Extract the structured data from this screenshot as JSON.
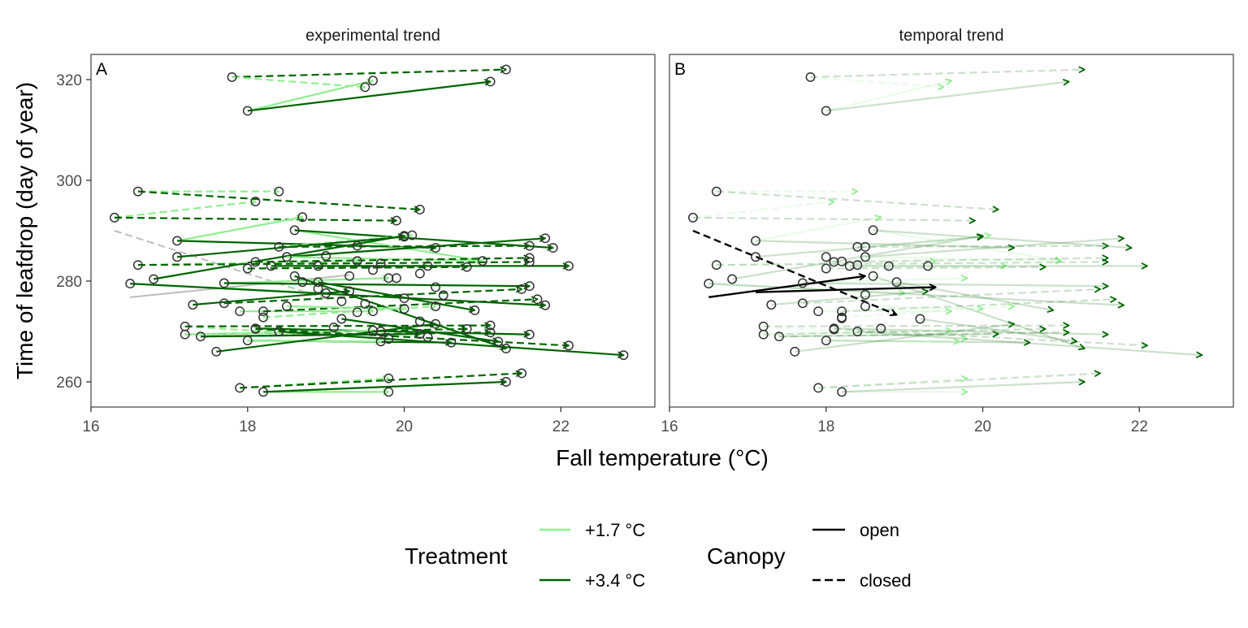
{
  "chart_data": {
    "type": "line",
    "ylabel": "Time of leafdrop (day of year)",
    "xlabel": "Fall temperature (°C)",
    "xlim": [
      16,
      23.2
    ],
    "ylim": [
      255,
      325
    ],
    "x_ticks": [
      16,
      18,
      20,
      22
    ],
    "y_ticks": [
      260,
      280,
      300,
      320
    ],
    "grid": false,
    "legend_position": "bottom",
    "legend": {
      "treatment_title": "Treatment",
      "treatment_items": [
        {
          "label": "+1.7 °C",
          "color": "#90EE90"
        },
        {
          "label": "+3.4 °C",
          "color": "#006400"
        }
      ],
      "canopy_title": "Canopy",
      "canopy_items": [
        {
          "label": "open",
          "dash": "solid"
        },
        {
          "label": "closed",
          "dash": "dashed"
        }
      ]
    },
    "colors": {
      "light": "#90EE90",
      "dark": "#006400",
      "summary": "#000000",
      "grey": "#bdbdbd",
      "point_edge": "#333333"
    },
    "panels": [
      {
        "tag": "A",
        "title": "experimental trend",
        "show_endpoints": true,
        "arrow_alpha": 1.0
      },
      {
        "tag": "B",
        "title": "temporal trend",
        "show_endpoints": false,
        "arrow_alpha": 0.2
      }
    ],
    "arrows": [
      {
        "x0": 17.8,
        "y0": 320.5,
        "x1": 21.3,
        "y1": 322.0,
        "treatment": "+3.4 °C",
        "canopy": "closed"
      },
      {
        "x0": 17.8,
        "y0": 320.5,
        "x1": 19.5,
        "y1": 318.5,
        "treatment": "+1.7 °C",
        "canopy": "closed"
      },
      {
        "x0": 18.0,
        "y0": 313.8,
        "x1": 19.6,
        "y1": 319.8,
        "treatment": "+1.7 °C",
        "canopy": "open"
      },
      {
        "x0": 18.0,
        "y0": 313.8,
        "x1": 21.1,
        "y1": 319.6,
        "treatment": "+3.4 °C",
        "canopy": "open"
      },
      {
        "x0": 16.6,
        "y0": 297.8,
        "x1": 18.4,
        "y1": 297.8,
        "treatment": "+1.7 °C",
        "canopy": "closed"
      },
      {
        "x0": 16.6,
        "y0": 297.8,
        "x1": 20.2,
        "y1": 294.2,
        "treatment": "+3.4 °C",
        "canopy": "closed"
      },
      {
        "x0": 16.3,
        "y0": 292.6,
        "x1": 18.1,
        "y1": 295.8,
        "treatment": "+1.7 °C",
        "canopy": "closed"
      },
      {
        "x0": 16.3,
        "y0": 292.6,
        "x1": 19.9,
        "y1": 292.0,
        "treatment": "+3.4 °C",
        "canopy": "closed"
      },
      {
        "x0": 17.1,
        "y0": 288.0,
        "x1": 18.7,
        "y1": 292.7,
        "treatment": "+1.7 °C",
        "canopy": "open"
      },
      {
        "x0": 17.1,
        "y0": 288.0,
        "x1": 20.4,
        "y1": 286.6,
        "treatment": "+3.4 °C",
        "canopy": "open"
      },
      {
        "x0": 18.6,
        "y0": 290.1,
        "x1": 21.0,
        "y1": 284.0,
        "treatment": "+1.7 °C",
        "canopy": "open"
      },
      {
        "x0": 18.6,
        "y0": 290.1,
        "x1": 21.9,
        "y1": 286.6,
        "treatment": "+3.4 °C",
        "canopy": "open"
      },
      {
        "x0": 18.4,
        "y0": 286.8,
        "x1": 20.1,
        "y1": 289.1,
        "treatment": "+1.7 °C",
        "canopy": "closed"
      },
      {
        "x0": 18.4,
        "y0": 286.8,
        "x1": 21.6,
        "y1": 287.0,
        "treatment": "+3.4 °C",
        "canopy": "closed"
      },
      {
        "x0": 17.1,
        "y0": 284.8,
        "x1": 20.0,
        "y1": 288.8,
        "treatment": "+3.4 °C",
        "canopy": "open"
      },
      {
        "x0": 16.8,
        "y0": 280.4,
        "x1": 20.0,
        "y1": 289.0,
        "treatment": "+3.4 °C",
        "canopy": "open"
      },
      {
        "x0": 18.5,
        "y0": 284.8,
        "x1": 21.8,
        "y1": 288.5,
        "treatment": "+3.4 °C",
        "canopy": "open"
      },
      {
        "x0": 18.5,
        "y0": 284.8,
        "x1": 21.0,
        "y1": 284.0,
        "treatment": "+1.7 °C",
        "canopy": "open"
      },
      {
        "x0": 16.6,
        "y0": 283.2,
        "x1": 19.4,
        "y1": 284.0,
        "treatment": "+1.7 °C",
        "canopy": "closed"
      },
      {
        "x0": 16.6,
        "y0": 283.2,
        "x1": 21.6,
        "y1": 283.8,
        "treatment": "+3.4 °C",
        "canopy": "closed"
      },
      {
        "x0": 18.1,
        "y0": 283.8,
        "x1": 21.6,
        "y1": 284.6,
        "treatment": "+3.4 °C",
        "canopy": "closed"
      },
      {
        "x0": 18.3,
        "y0": 283.0,
        "x1": 20.3,
        "y1": 283.0,
        "treatment": "+1.7 °C",
        "canopy": "open"
      },
      {
        "x0": 18.3,
        "y0": 283.0,
        "x1": 22.1,
        "y1": 283.0,
        "treatment": "+3.4 °C",
        "canopy": "open"
      },
      {
        "x0": 18.0,
        "y0": 282.5,
        "x1": 20.8,
        "y1": 282.8,
        "treatment": "+3.4 °C",
        "canopy": "closed"
      },
      {
        "x0": 16.5,
        "y0": 279.5,
        "x1": 19.0,
        "y1": 277.6,
        "treatment": "+1.7 °C",
        "canopy": "open"
      },
      {
        "x0": 16.5,
        "y0": 279.5,
        "x1": 21.8,
        "y1": 275.2,
        "treatment": "+3.4 °C",
        "canopy": "open"
      },
      {
        "x0": 17.7,
        "y0": 279.6,
        "x1": 19.8,
        "y1": 280.6,
        "treatment": "+1.7 °C",
        "canopy": "open"
      },
      {
        "x0": 17.7,
        "y0": 279.6,
        "x1": 21.6,
        "y1": 279.0,
        "treatment": "+3.4 °C",
        "canopy": "open"
      },
      {
        "x0": 18.9,
        "y0": 279.8,
        "x1": 20.9,
        "y1": 274.2,
        "treatment": "+3.4 °C",
        "canopy": "open"
      },
      {
        "x0": 18.6,
        "y0": 281.0,
        "x1": 21.3,
        "y1": 266.6,
        "treatment": "+3.4 °C",
        "canopy": "open"
      },
      {
        "x0": 17.3,
        "y0": 275.3,
        "x1": 19.3,
        "y1": 278.0,
        "treatment": "+3.4 °C",
        "canopy": "open"
      },
      {
        "x0": 17.7,
        "y0": 275.6,
        "x1": 21.5,
        "y1": 278.4,
        "treatment": "+3.4 °C",
        "canopy": "closed"
      },
      {
        "x0": 17.9,
        "y0": 274.0,
        "x1": 19.6,
        "y1": 274.0,
        "treatment": "+1.7 °C",
        "canopy": "open"
      },
      {
        "x0": 18.2,
        "y0": 274.0,
        "x1": 21.7,
        "y1": 276.4,
        "treatment": "+3.4 °C",
        "canopy": "closed"
      },
      {
        "x0": 18.2,
        "y0": 272.8,
        "x1": 20.4,
        "y1": 275.0,
        "treatment": "+1.7 °C",
        "canopy": "closed"
      },
      {
        "x0": 18.5,
        "y0": 275.0,
        "x1": 20.0,
        "y1": 274.5,
        "treatment": "+1.7 °C",
        "canopy": "open"
      },
      {
        "x0": 19.2,
        "y0": 272.5,
        "x1": 21.2,
        "y1": 268.0,
        "treatment": "+3.4 °C",
        "canopy": "open"
      },
      {
        "x0": 17.2,
        "y0": 271.0,
        "x1": 19.8,
        "y1": 268.5,
        "treatment": "+1.7 °C",
        "canopy": "closed"
      },
      {
        "x0": 17.2,
        "y0": 271.0,
        "x1": 21.1,
        "y1": 271.2,
        "treatment": "+3.4 °C",
        "canopy": "closed"
      },
      {
        "x0": 18.1,
        "y0": 270.6,
        "x1": 21.6,
        "y1": 269.4,
        "treatment": "+3.4 °C",
        "canopy": "open"
      },
      {
        "x0": 17.2,
        "y0": 269.4,
        "x1": 20.8,
        "y1": 270.5,
        "treatment": "+3.4 °C",
        "canopy": "closed"
      },
      {
        "x0": 17.2,
        "y0": 269.4,
        "x1": 19.6,
        "y1": 270.2,
        "treatment": "+1.7 °C",
        "canopy": "open"
      },
      {
        "x0": 17.4,
        "y0": 269.0,
        "x1": 20.2,
        "y1": 269.5,
        "treatment": "+3.4 °C",
        "canopy": "open"
      },
      {
        "x0": 17.4,
        "y0": 269.0,
        "x1": 21.1,
        "y1": 269.8,
        "treatment": "+3.4 °C",
        "canopy": "closed"
      },
      {
        "x0": 18.0,
        "y0": 268.2,
        "x1": 20.6,
        "y1": 267.8,
        "treatment": "+3.4 °C",
        "canopy": "open"
      },
      {
        "x0": 18.0,
        "y0": 268.2,
        "x1": 19.7,
        "y1": 268.0,
        "treatment": "+1.7 °C",
        "canopy": "open"
      },
      {
        "x0": 17.6,
        "y0": 266.0,
        "x1": 20.4,
        "y1": 271.5,
        "treatment": "+3.4 °C",
        "canopy": "open"
      },
      {
        "x0": 18.1,
        "y0": 270.5,
        "x1": 22.1,
        "y1": 267.2,
        "treatment": "+3.4 °C",
        "canopy": "closed"
      },
      {
        "x0": 18.4,
        "y0": 270.0,
        "x1": 22.8,
        "y1": 265.3,
        "treatment": "+3.4 °C",
        "canopy": "open"
      },
      {
        "x0": 17.9,
        "y0": 258.8,
        "x1": 19.8,
        "y1": 260.7,
        "treatment": "+1.7 °C",
        "canopy": "closed"
      },
      {
        "x0": 17.9,
        "y0": 258.8,
        "x1": 21.5,
        "y1": 261.7,
        "treatment": "+3.4 °C",
        "canopy": "closed"
      },
      {
        "x0": 18.2,
        "y0": 258.0,
        "x1": 19.8,
        "y1": 258.0,
        "treatment": "+1.7 °C",
        "canopy": "open"
      },
      {
        "x0": 18.2,
        "y0": 258.0,
        "x1": 21.3,
        "y1": 260.0,
        "treatment": "+3.4 °C",
        "canopy": "open"
      }
    ],
    "extra_points_A": [
      [
        19.4,
        287.0
      ],
      [
        19.0,
        285.0
      ],
      [
        19.7,
        283.5
      ],
      [
        20.2,
        281.5
      ],
      [
        19.3,
        281.0
      ],
      [
        18.9,
        278.5
      ],
      [
        19.9,
        280.6
      ],
      [
        20.4,
        278.8
      ],
      [
        19.2,
        276.0
      ],
      [
        20.0,
        276.6
      ],
      [
        19.5,
        275.5
      ],
      [
        20.5,
        277.2
      ],
      [
        19.1,
        270.8
      ],
      [
        19.7,
        270.0
      ],
      [
        20.3,
        268.9
      ],
      [
        20.2,
        272.0
      ],
      [
        19.4,
        273.8
      ],
      [
        18.7,
        279.8
      ],
      [
        18.9,
        283.0
      ],
      [
        19.6,
        282.2
      ]
    ],
    "grey_lines": [
      {
        "x0": 16.3,
        "y0": 290.0,
        "x1": 19.0,
        "y1": 276.5,
        "canopy": "closed"
      },
      {
        "x0": 16.5,
        "y0": 276.8,
        "x1": 19.3,
        "y1": 281.2,
        "canopy": "open"
      }
    ],
    "summary_arrows": [
      {
        "x0": 16.3,
        "y0": 290.0,
        "x1": 18.9,
        "y1": 273.3,
        "canopy": "closed"
      },
      {
        "x0": 16.5,
        "y0": 276.8,
        "x1": 18.5,
        "y1": 281.0,
        "canopy": "open"
      },
      {
        "x0": 17.1,
        "y0": 277.8,
        "x1": 19.4,
        "y1": 278.8,
        "canopy": "open"
      }
    ]
  }
}
